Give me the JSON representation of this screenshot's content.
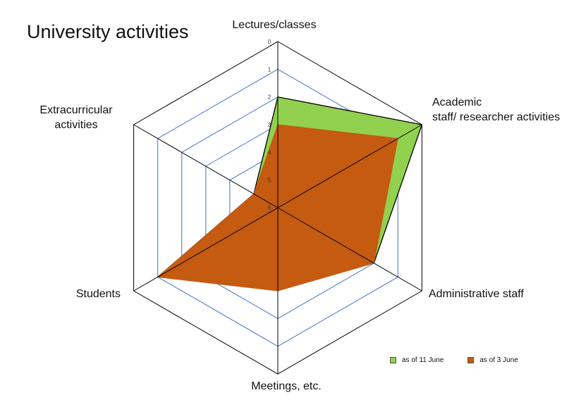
{
  "chart_data": {
    "type": "radar",
    "title": "University activities",
    "axes": [
      "Lectures/classes",
      "Academic staff/ researcher activities",
      "Administrative staff",
      "Meetings, etc.",
      "Students",
      "Extracurricular activities"
    ],
    "scale": {
      "min": 0,
      "max": 6,
      "ticks": [
        0,
        1,
        2,
        3,
        4,
        5,
        6
      ],
      "reversed": true
    },
    "series": [
      {
        "name": "as of 11 June",
        "color": "#92D050",
        "values": [
          2,
          0,
          2,
          4,
          1,
          5
        ]
      },
      {
        "name": "as of 3 June",
        "color": "#C55A11",
        "values": [
          3,
          1,
          2,
          3,
          1,
          5
        ]
      }
    ],
    "legend": "bottom-right",
    "gridline_color": "#4472C4"
  }
}
